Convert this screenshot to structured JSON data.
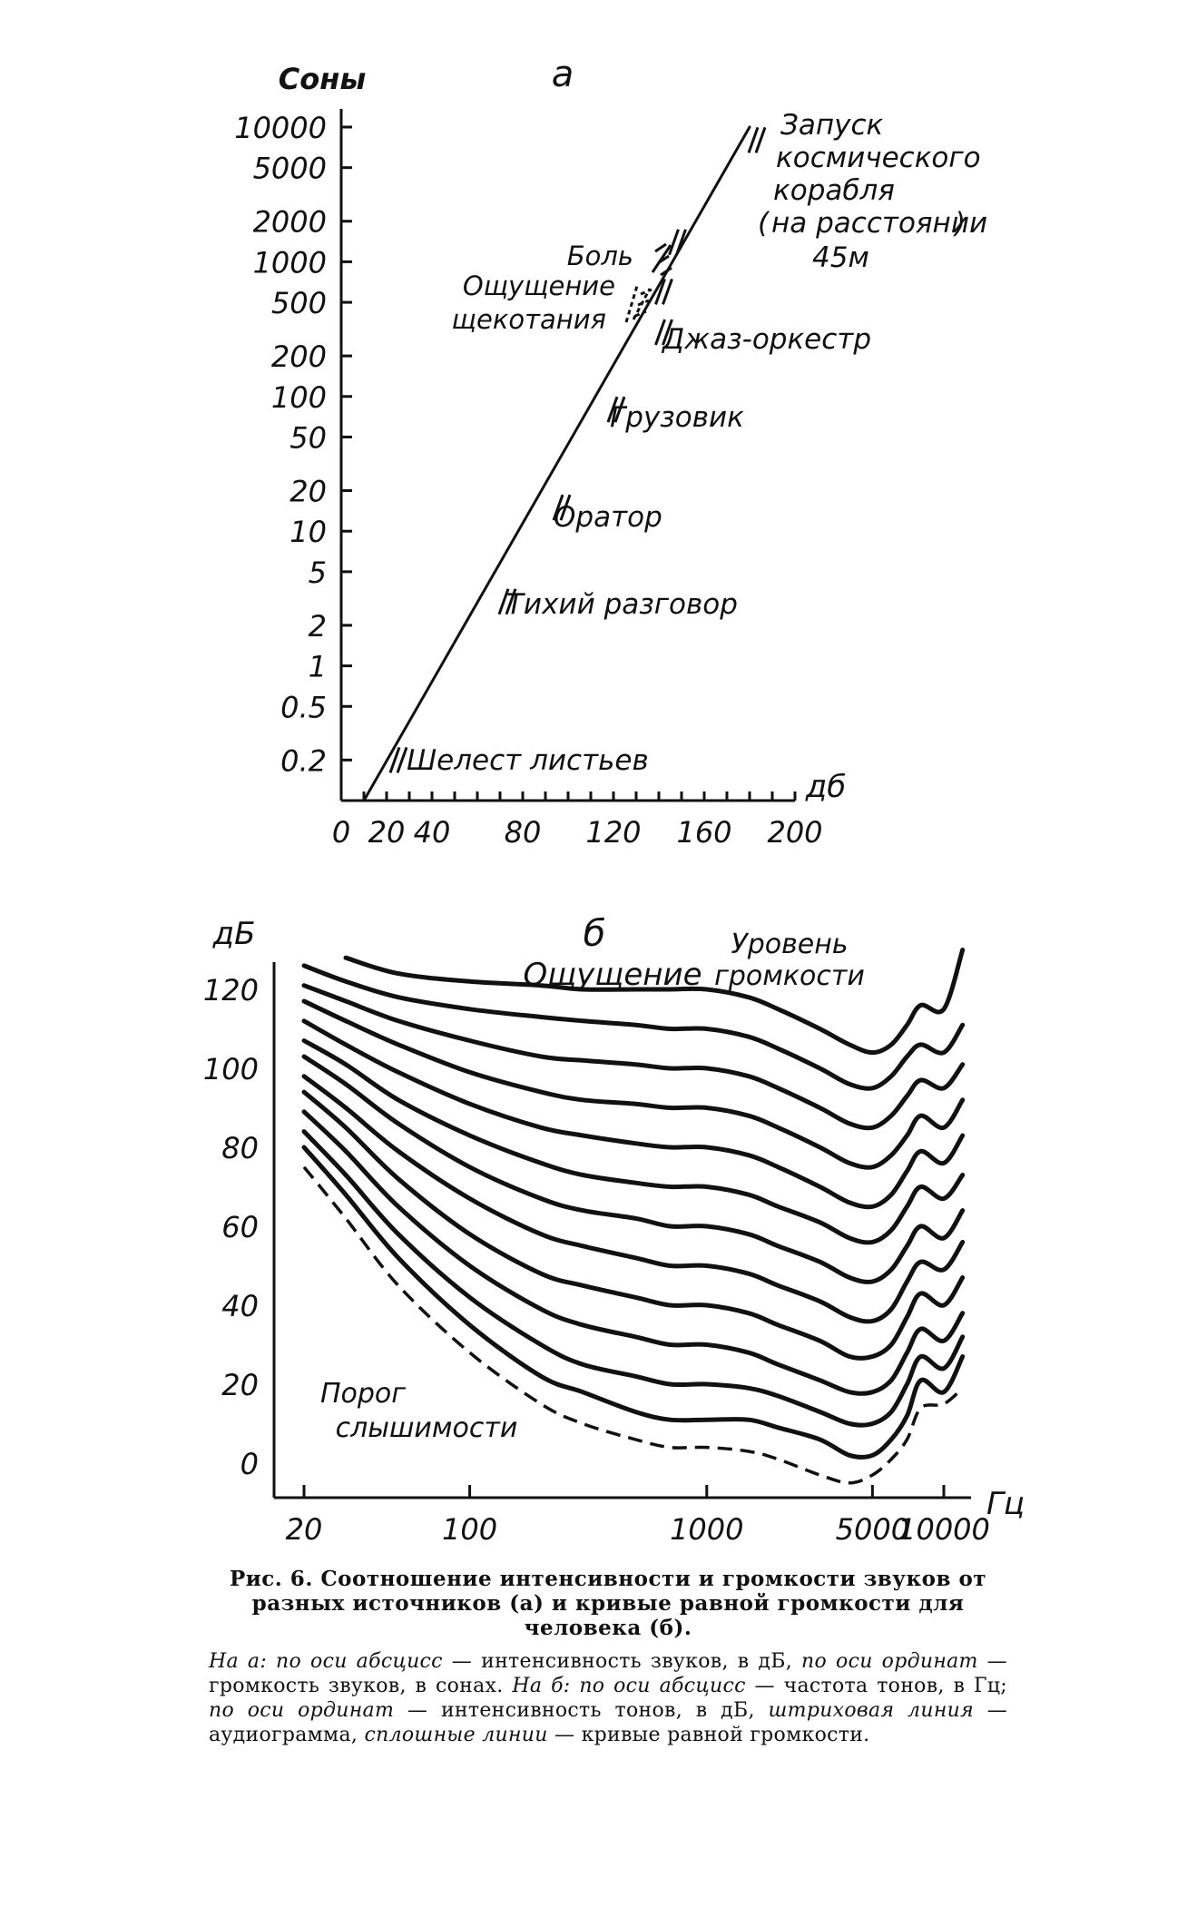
{
  "chart_data": [
    {
      "panel": "а",
      "type": "line",
      "title": "а",
      "ylabel": "Соны",
      "xlabel": "дб",
      "x_ticks": [
        0,
        20,
        40,
        80,
        120,
        160,
        200
      ],
      "y_ticks": [
        "10000",
        "5000",
        "2000",
        "1000",
        "500",
        "200",
        "100",
        "50",
        "20",
        "10",
        "5",
        "2",
        "1",
        "0.5",
        "0.2"
      ],
      "y_scale": "log",
      "xlim": [
        0,
        200
      ],
      "ylim": [
        0.1,
        10000
      ],
      "line": {
        "x": [
          10,
          180
        ],
        "y": [
          0.1,
          10000
        ]
      },
      "annotations": [
        {
          "text": "Шелест листьев",
          "x": 20,
          "y": 0.2
        },
        {
          "text": "Тихий разговор",
          "x": 68,
          "y": 3
        },
        {
          "text": "Оратор",
          "x": 92,
          "y": 15
        },
        {
          "text": "Грузовик",
          "x": 116,
          "y": 80
        },
        {
          "text": "Джаз-оркестр",
          "x": 137,
          "y": 300
        },
        {
          "text": "Ощущение щекотания",
          "x": 137,
          "y": 600
        },
        {
          "text": "Боль",
          "x": 143,
          "y": 1400
        },
        {
          "text": "Запуск космического корабля (на расстоянии) 45м",
          "x": 178,
          "y": 8000
        }
      ],
      "labels": {
        "t1": "Шелест листьев",
        "t2": "Тихий разговор",
        "t3": "Оратор",
        "t4": "Грузовик",
        "t5": "Джаз-оркестр",
        "t6a": "Ощущение",
        "t6b": "щекотания",
        "t7": "Боль",
        "t8a": "Запуск",
        "t8b": "космического",
        "t8c": "корабля",
        "t8d": "на расстоянии",
        "t8e": "45м"
      }
    },
    {
      "panel": "б",
      "type": "line",
      "title": "б",
      "ylabel": "дБ",
      "xlabel": "Гц",
      "x_scale": "log",
      "x_ticks": [
        "20",
        "100",
        "1000",
        "5000",
        "10000"
      ],
      "y_ticks": [
        "120",
        "100",
        "80",
        "60",
        "40",
        "20",
        "0"
      ],
      "xlim": [
        20,
        12000
      ],
      "ylim": [
        0,
        130
      ],
      "x": [
        20,
        30,
        50,
        100,
        200,
        300,
        500,
        700,
        1000,
        1500,
        2000,
        3000,
        4000,
        5000,
        6000,
        7000,
        8000,
        10000,
        12000
      ],
      "threshold": {
        "name": "Порог слышимости",
        "style": "dashed",
        "y": [
          75,
          62,
          45,
          28,
          15,
          10,
          6,
          4,
          4,
          3,
          1,
          -3,
          -5,
          -3,
          1,
          6,
          14,
          15,
          19
        ]
      },
      "series": [
        {
          "level": 10,
          "y": [
            80,
            68,
            52,
            35,
            22,
            18,
            13,
            11,
            11,
            11,
            9,
            6,
            2,
            2,
            6,
            12,
            21,
            18,
            27
          ]
        },
        {
          "level": 20,
          "y": [
            84,
            73,
            58,
            42,
            30,
            25,
            22,
            20,
            20,
            19,
            17,
            13,
            10,
            10,
            13,
            20,
            27,
            24,
            32
          ]
        },
        {
          "level": 30,
          "y": [
            89,
            79,
            65,
            50,
            39,
            35,
            32,
            30,
            30,
            28,
            25,
            21,
            18,
            18,
            21,
            28,
            34,
            31,
            38
          ]
        },
        {
          "level": 40,
          "y": [
            94,
            85,
            72,
            58,
            48,
            45,
            42,
            40,
            40,
            38,
            35,
            31,
            27,
            27,
            30,
            37,
            43,
            40,
            47
          ]
        },
        {
          "level": 50,
          "y": [
            98,
            90,
            79,
            67,
            58,
            55,
            52,
            50,
            50,
            48,
            45,
            41,
            37,
            36,
            39,
            46,
            51,
            49,
            56
          ]
        },
        {
          "level": 60,
          "y": [
            103,
            96,
            86,
            75,
            67,
            64,
            62,
            60,
            60,
            58,
            55,
            51,
            47,
            46,
            49,
            55,
            60,
            57,
            64
          ]
        },
        {
          "level": 70,
          "y": [
            107,
            101,
            92,
            83,
            76,
            73,
            71,
            70,
            70,
            68,
            65,
            61,
            57,
            56,
            59,
            65,
            70,
            67,
            73
          ]
        },
        {
          "level": 80,
          "y": [
            112,
            106,
            99,
            91,
            85,
            83,
            81,
            80,
            80,
            78,
            75,
            70,
            66,
            65,
            68,
            74,
            79,
            76,
            83
          ]
        },
        {
          "level": 90,
          "y": [
            117,
            112,
            106,
            99,
            94,
            92,
            91,
            90,
            90,
            88,
            85,
            80,
            76,
            75,
            78,
            83,
            88,
            85,
            92
          ]
        },
        {
          "level": 100,
          "y": [
            121,
            117,
            112,
            107,
            103,
            102,
            101,
            100,
            100,
            98,
            95,
            90,
            86,
            85,
            88,
            93,
            97,
            95,
            101
          ]
        },
        {
          "level": 110,
          "y": [
            126,
            122,
            118,
            115,
            113,
            112,
            111,
            110,
            110,
            108,
            105,
            100,
            96,
            95,
            98,
            103,
            106,
            104,
            111
          ]
        },
        {
          "level": 120,
          "y": [
            null,
            128,
            124,
            122,
            121,
            120,
            120,
            120,
            120,
            118,
            115,
            110,
            106,
            104,
            106,
            111,
            116,
            115,
            130
          ]
        }
      ],
      "labels": {
        "sensation": "Ощущение",
        "level_a": "Уровень",
        "level_b": "громкости",
        "threshold_a": "Порог",
        "threshold_b": "слышимости"
      }
    }
  ],
  "caption": {
    "title": "Рис. 6. Соотношение интенсивности и громкости звуков от разных источников (а) и кривые равной громкости для человека (б).",
    "note_a_label": "На а:",
    "note_a_x_label": "по оси абсцисс —",
    "note_a_x": "интенсивность звуков, в дБ,",
    "note_a_y_label": "по оси ординат —",
    "note_a_y": "громкость звуков, в сонах.",
    "note_b_label": "На б:",
    "note_b_x_label": "по оси абсцисс —",
    "note_b_x": "частота тонов, в Гц;",
    "note_b_y_label": "по оси ординат —",
    "note_b_y": "интенсивность тонов, в дБ,",
    "note_dash_label": "штриховая линия —",
    "note_dash": "аудиограмма,",
    "note_solid_label": "сплошные линии —",
    "note_solid": "кривые равной громкости."
  }
}
